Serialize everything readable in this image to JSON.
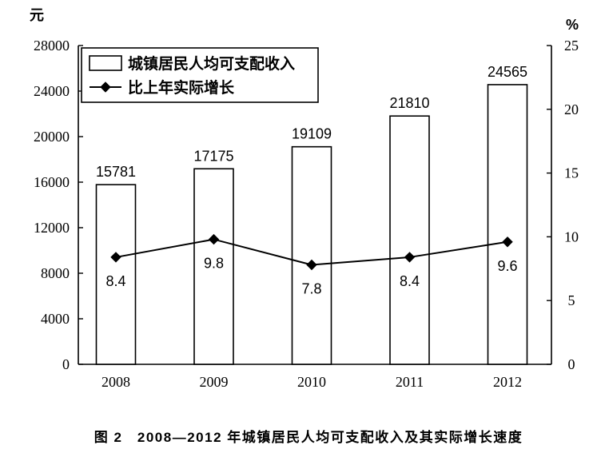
{
  "chart_data": {
    "type": "bar",
    "categories": [
      "2008",
      "2009",
      "2010",
      "2011",
      "2012"
    ],
    "series": [
      {
        "name": "城镇居民人均可支配收入",
        "type": "bar",
        "axis": "left",
        "values": [
          15781,
          17175,
          19109,
          21810,
          24565
        ]
      },
      {
        "name": "比上年实际增长",
        "type": "line",
        "axis": "right",
        "marker": "diamond",
        "values": [
          8.4,
          9.8,
          7.8,
          8.4,
          9.6
        ]
      }
    ],
    "y_left": {
      "unit": "元",
      "range": [
        0,
        28000
      ],
      "ticks": [
        0,
        4000,
        8000,
        12000,
        16000,
        20000,
        24000,
        28000
      ]
    },
    "y_right": {
      "unit": "%",
      "range": [
        0,
        25
      ],
      "ticks": [
        0,
        5,
        10,
        15,
        20,
        25
      ]
    },
    "data_labels": true,
    "legend": "top-left",
    "grid": false
  },
  "caption": "图 2　2008—2012 年城镇居民人均可支配收入及其实际增长速度",
  "colors": {
    "ink": "#000000",
    "bar_fill": "#ffffff",
    "background": "#ffffff"
  }
}
